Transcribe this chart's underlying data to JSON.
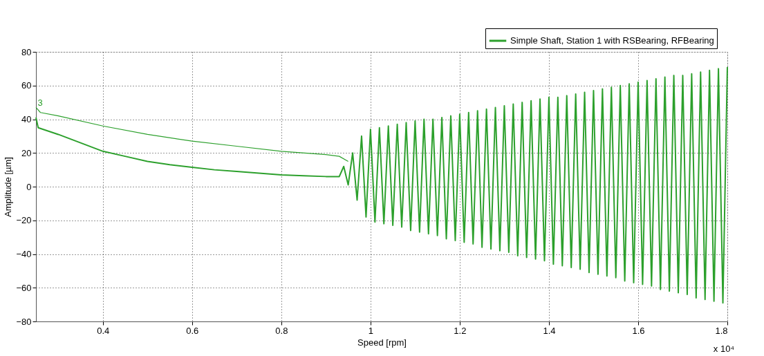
{
  "chart_data": {
    "type": "line",
    "xlabel": "Speed [rpm]",
    "ylabel": "Amplitude [µm]",
    "xlim": [
      0.25,
      1.8
    ],
    "xticks": [
      0.4,
      0.6,
      0.8,
      1,
      1.2,
      1.4,
      1.6,
      1.8
    ],
    "ylim": [
      -80,
      80
    ],
    "yticks": [
      -80,
      -60,
      -40,
      -20,
      0,
      20,
      40,
      60,
      80
    ],
    "grid": true,
    "legend": "top right",
    "annotations": [
      "x 10⁴",
      "3"
    ],
    "series": [
      {
        "name": "Simple Shaft, Station 1 with RSBearing, RFBearing",
        "color": "#2ca02c",
        "x": [
          0.25,
          0.255,
          0.3,
          0.35,
          0.4,
          0.45,
          0.5,
          0.55,
          0.6,
          0.65,
          0.7,
          0.75,
          0.8,
          0.85,
          0.9,
          0.93,
          0.94,
          0.95,
          0.96,
          0.97,
          0.98,
          0.99,
          1.0,
          1.01,
          1.02,
          1.03,
          1.04,
          1.05,
          1.06,
          1.07,
          1.08,
          1.09,
          1.1,
          1.11,
          1.12,
          1.13,
          1.14,
          1.15,
          1.16,
          1.17,
          1.18,
          1.19,
          1.2,
          1.21,
          1.22,
          1.23,
          1.24,
          1.25,
          1.26,
          1.27,
          1.28,
          1.29,
          1.3,
          1.31,
          1.32,
          1.33,
          1.34,
          1.35,
          1.36,
          1.37,
          1.38,
          1.39,
          1.4,
          1.41,
          1.42,
          1.43,
          1.44,
          1.45,
          1.46,
          1.47,
          1.48,
          1.49,
          1.5,
          1.51,
          1.52,
          1.53,
          1.54,
          1.55,
          1.56,
          1.57,
          1.58,
          1.59,
          1.6,
          1.61,
          1.62,
          1.63,
          1.64,
          1.65,
          1.66,
          1.67,
          1.68,
          1.69,
          1.7,
          1.71,
          1.72,
          1.73,
          1.74,
          1.75,
          1.76,
          1.77,
          1.78,
          1.79,
          1.8
        ],
        "values": [
          41,
          35,
          31,
          26,
          21,
          18,
          15,
          13,
          11.5,
          10,
          9,
          8,
          7,
          6.5,
          6,
          6,
          12,
          1,
          20,
          -8,
          30,
          -18,
          34,
          -21,
          35,
          -22,
          36,
          -23,
          37,
          -24,
          38,
          -26,
          39,
          -27,
          40,
          -28,
          40,
          -29,
          41,
          -31,
          42,
          -32,
          43,
          -33,
          44,
          -34,
          45,
          -36,
          46,
          -37,
          47,
          -38,
          48,
          -39,
          49,
          -41,
          50,
          -42,
          51,
          -43,
          52,
          -44,
          53,
          -46,
          53,
          -47,
          54,
          -48,
          55,
          -49,
          56,
          -51,
          57,
          -52,
          58,
          -53,
          59,
          -54,
          60,
          -56,
          61,
          -57,
          62,
          -58,
          63,
          -59,
          64,
          -61,
          65,
          -62,
          66,
          -63,
          66,
          -64,
          67,
          -66,
          68,
          -67,
          69,
          -68,
          70,
          -69,
          71
        ]
      },
      {
        "color": "#2ca02c",
        "x": [
          0.25,
          0.26,
          0.3,
          0.4,
          0.5,
          0.6,
          0.7,
          0.8,
          0.9,
          0.93,
          0.95
        ],
        "values": [
          47,
          44,
          42,
          36,
          31,
          27,
          24,
          21,
          19,
          18,
          15
        ]
      }
    ]
  }
}
